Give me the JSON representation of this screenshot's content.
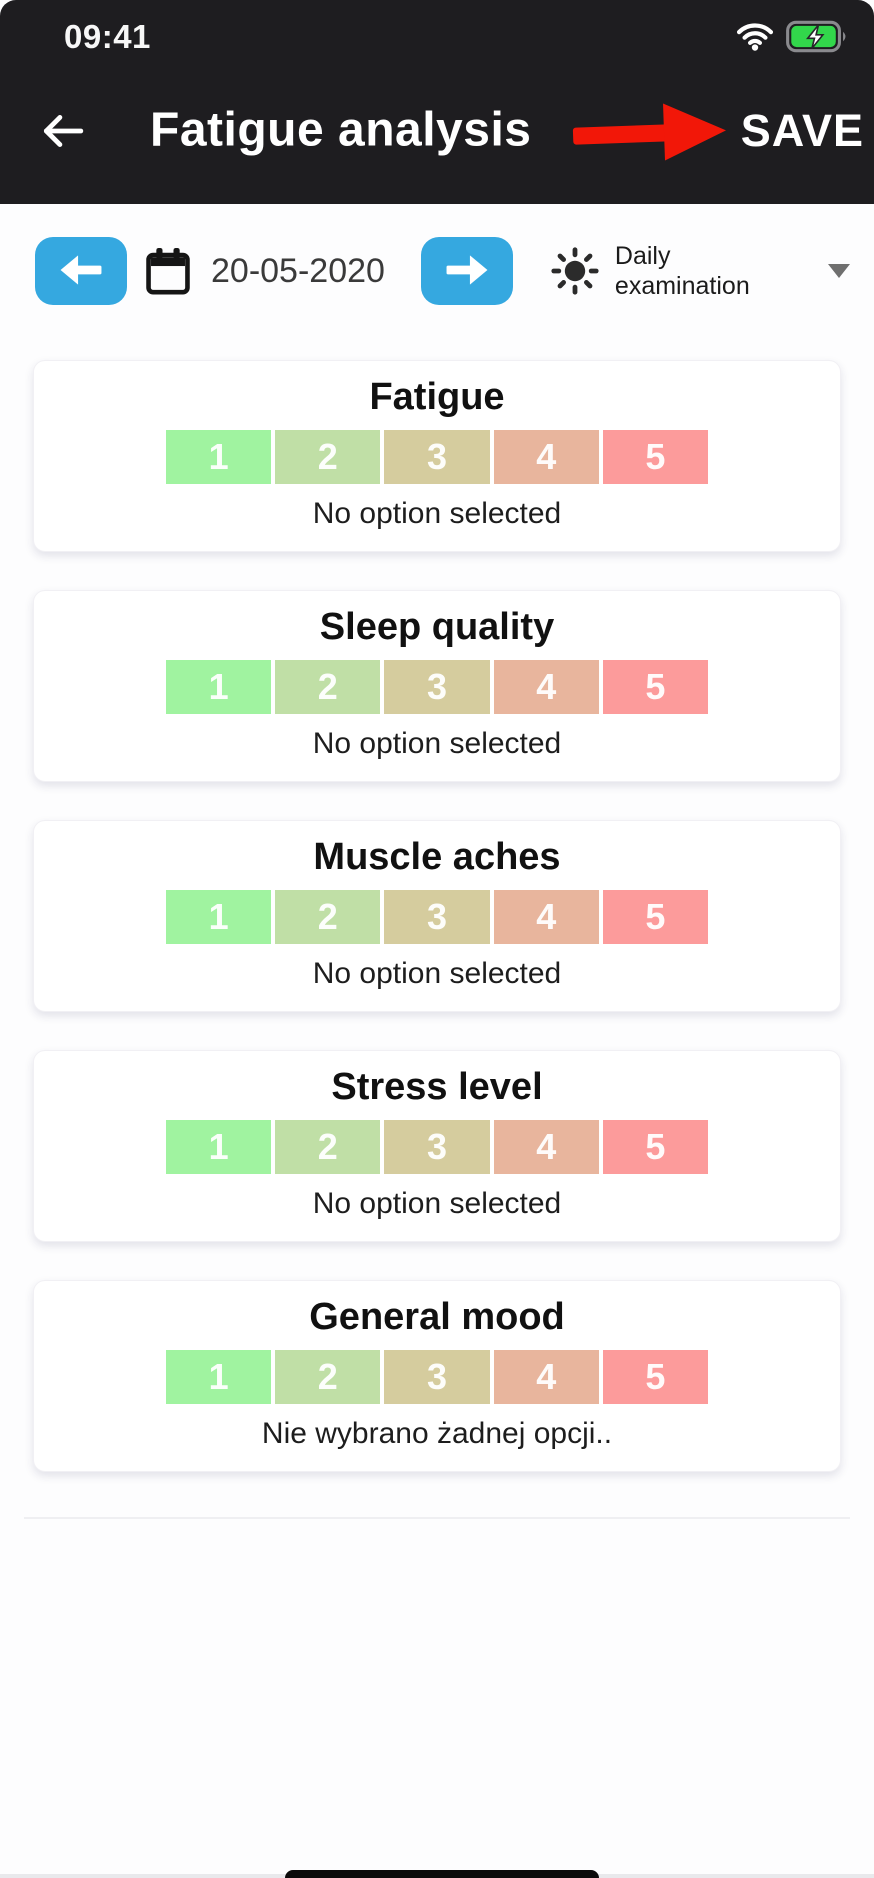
{
  "status_bar": {
    "time": "09:41",
    "wifi_icon": "wifi-icon",
    "battery_icon": "battery-charging-icon",
    "battery_fill_color": "#32d74b"
  },
  "header": {
    "background_color": "#1e1d20",
    "back_icon": "back-arrow-icon",
    "title": "Fatigue analysis",
    "save_label": "SAVE",
    "annotation_arrow_color": "#f21708"
  },
  "toolbar": {
    "prev_day_icon": "arrow-left-icon",
    "calendar_icon": "calendar-icon",
    "date": "20-05-2020",
    "next_day_icon": "arrow-right-icon",
    "mode_icon": "sun-icon",
    "mode_label": "Daily examination",
    "dropdown_icon": "chevron-down-icon",
    "button_color": "#35a8e0"
  },
  "scale": {
    "options": [
      "1",
      "2",
      "3",
      "4",
      "5"
    ],
    "colors": [
      "#a0f3a0",
      "#c0dfa6",
      "#d5cc9e",
      "#e8b59d",
      "#fc9b9b"
    ]
  },
  "cards": [
    {
      "title": "Fatigue",
      "status": "No option selected"
    },
    {
      "title": "Sleep quality",
      "status": "No option selected"
    },
    {
      "title": "Muscle aches",
      "status": "No option selected"
    },
    {
      "title": "Stress level",
      "status": "No option selected"
    },
    {
      "title": "General mood",
      "status": "Nie wybrano żadnej opcji.."
    }
  ]
}
